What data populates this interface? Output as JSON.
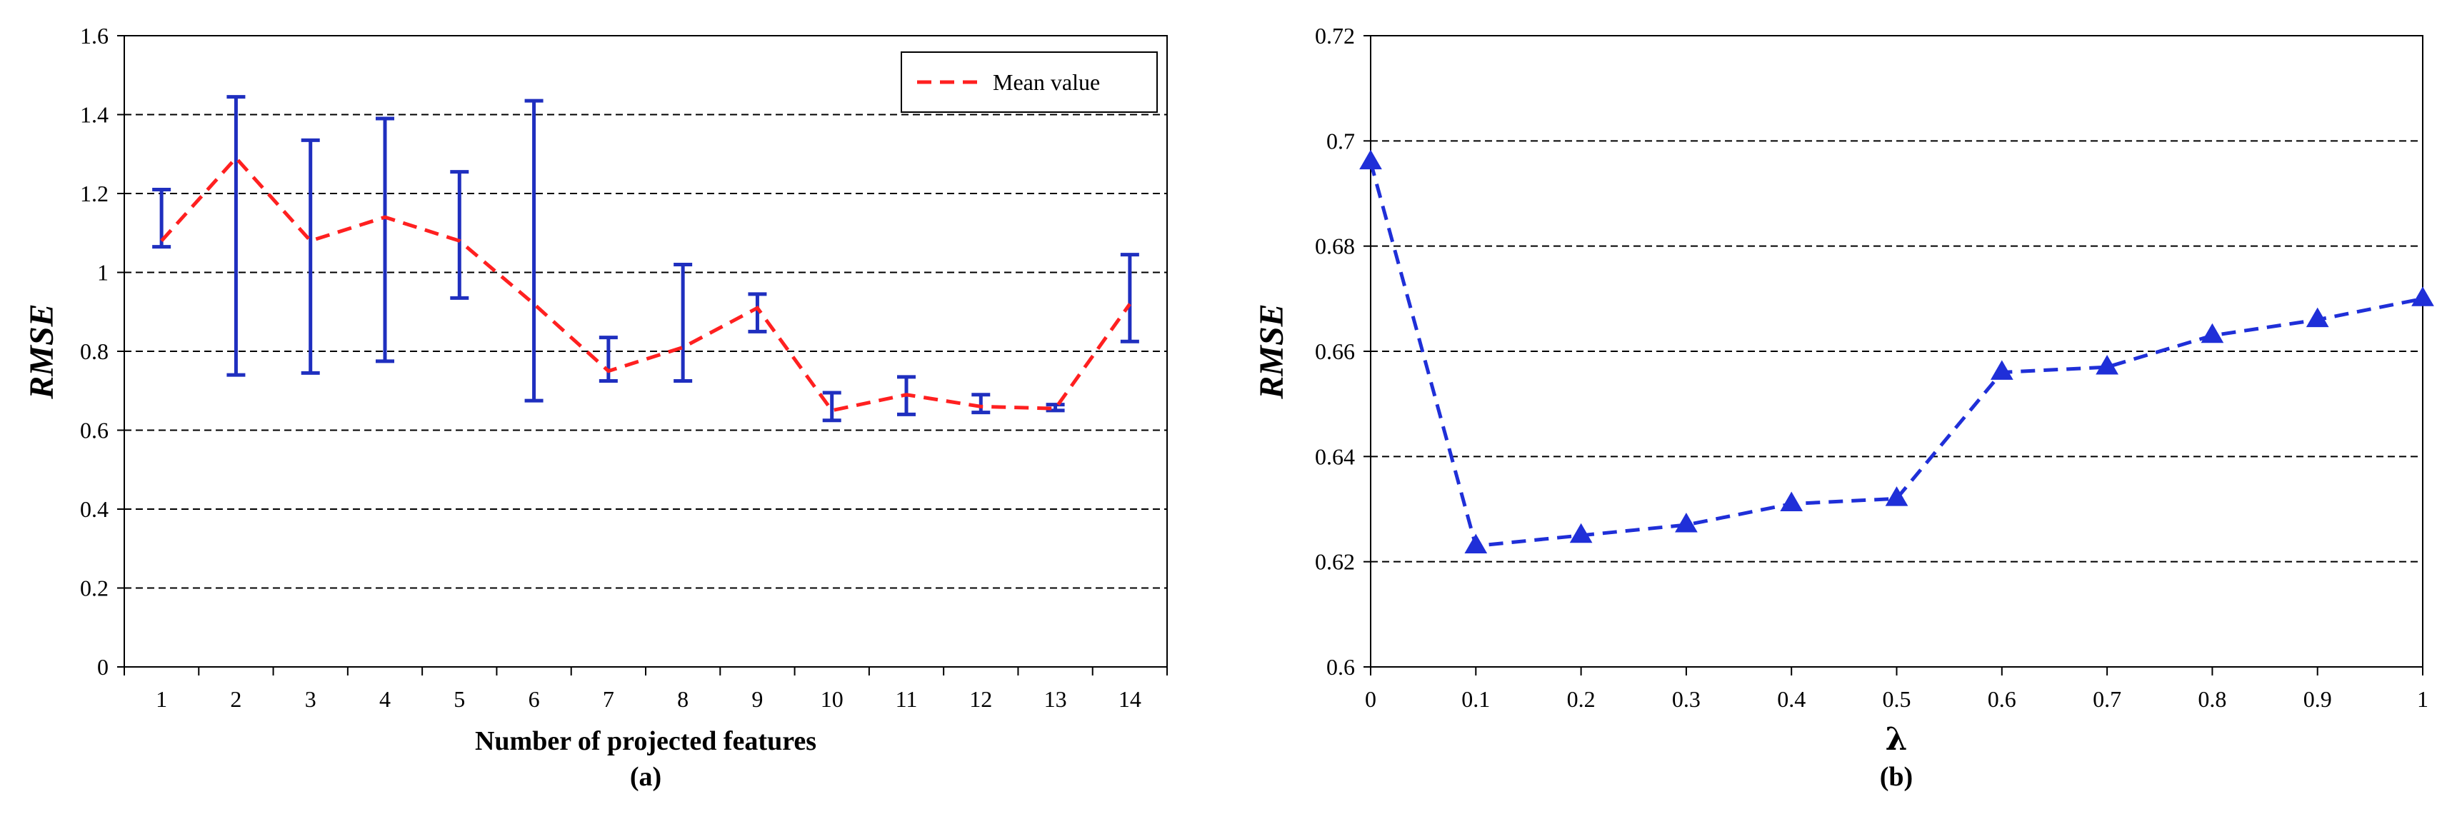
{
  "colors": {
    "mean_line": "#ff2020",
    "error_bar": "#1f2fbf",
    "series_b": "#1f2fd8",
    "grid": "#000000"
  },
  "chart_data": [
    {
      "type": "line",
      "panel": "(a)",
      "title": "",
      "xlabel": "Number of projected features",
      "ylabel": "RMSE",
      "categories": [
        "1",
        "2",
        "3",
        "4",
        "5",
        "6",
        "7",
        "8",
        "9",
        "10",
        "11",
        "12",
        "13",
        "14"
      ],
      "ylim": [
        0,
        1.6
      ],
      "yticks": [
        "0",
        "0.2",
        "0.4",
        "0.6",
        "0.8",
        "1",
        "1.2",
        "1.4",
        "1.6"
      ],
      "grid": "horizontal dashed",
      "legend": {
        "position": "top-right",
        "entries": [
          "Mean value"
        ]
      },
      "series": [
        {
          "name": "Mean value",
          "values": [
            1.08,
            1.29,
            1.08,
            1.14,
            1.08,
            0.92,
            0.75,
            0.81,
            0.91,
            0.65,
            0.69,
            0.66,
            0.655,
            0.92
          ],
          "error_low": [
            1.065,
            0.74,
            0.745,
            0.775,
            0.935,
            0.675,
            0.725,
            0.725,
            0.85,
            0.625,
            0.64,
            0.645,
            0.65,
            0.825
          ],
          "error_high": [
            1.21,
            1.445,
            1.335,
            1.39,
            1.255,
            1.435,
            0.835,
            1.02,
            0.945,
            0.695,
            0.735,
            0.69,
            0.665,
            1.045
          ]
        }
      ]
    },
    {
      "type": "line",
      "panel": "(b)",
      "title": "",
      "xlabel": "λ",
      "ylabel": "RMSE",
      "x": [
        0,
        0.1,
        0.2,
        0.3,
        0.4,
        0.5,
        0.6,
        0.7,
        0.8,
        0.9,
        1
      ],
      "xticks": [
        "0",
        "0.1",
        "0.2",
        "0.3",
        "0.4",
        "0.5",
        "0.6",
        "0.7",
        "0.8",
        "0.9",
        "1"
      ],
      "ylim": [
        0.6,
        0.72
      ],
      "yticks": [
        "0.6",
        "0.62",
        "0.64",
        "0.66",
        "0.68",
        "0.7",
        "0.72"
      ],
      "grid": "horizontal dashed",
      "series": [
        {
          "name": "RMSE",
          "values": [
            0.696,
            0.623,
            0.625,
            0.627,
            0.631,
            0.632,
            0.656,
            0.657,
            0.663,
            0.666,
            0.67
          ]
        }
      ]
    }
  ]
}
